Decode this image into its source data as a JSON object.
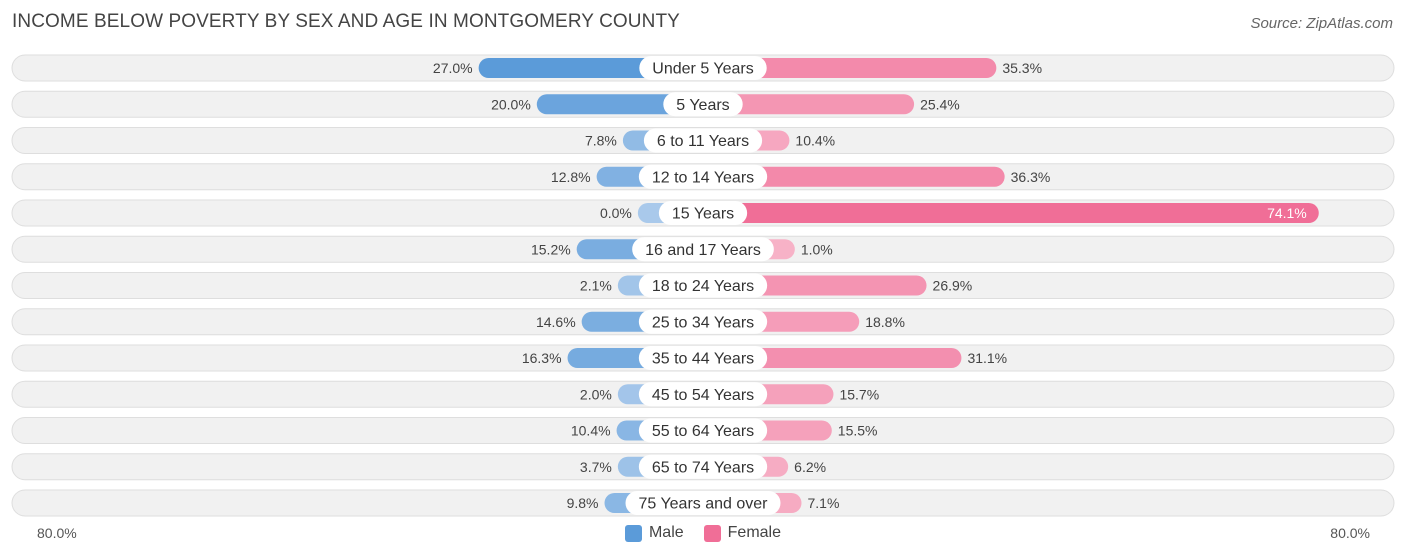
{
  "title": "INCOME BELOW POVERTY BY SEX AND AGE IN MONTGOMERY COUNTY",
  "source": "Source: ZipAtlas.com",
  "colors": {
    "male": "#5b9bd9",
    "male_light": "#a9c9eb",
    "female": "#f06e97",
    "female_light": "#f7b3c8",
    "row_bg": "#f1f1f1",
    "row_border": "#dedede"
  },
  "legend": {
    "male_label": "Male",
    "female_label": "Female"
  },
  "axis": {
    "left_label": "80.0%",
    "right_label": "80.0%"
  },
  "chart_data": {
    "type": "bar",
    "orientation": "horizontal-diverging",
    "title": "INCOME BELOW POVERTY BY SEX AND AGE IN MONTGOMERY COUNTY",
    "categories": [
      "Under 5 Years",
      "5 Years",
      "6 to 11 Years",
      "12 to 14 Years",
      "15 Years",
      "16 and 17 Years",
      "18 to 24 Years",
      "25 to 34 Years",
      "35 to 44 Years",
      "45 to 54 Years",
      "55 to 64 Years",
      "65 to 74 Years",
      "75 Years and over"
    ],
    "series": [
      {
        "name": "Male",
        "values": [
          27.0,
          20.0,
          7.8,
          12.8,
          0.0,
          15.2,
          2.1,
          14.6,
          16.3,
          2.0,
          10.4,
          3.7,
          9.8
        ]
      },
      {
        "name": "Female",
        "values": [
          35.3,
          25.4,
          10.4,
          36.3,
          74.1,
          1.0,
          26.9,
          18.8,
          31.1,
          15.7,
          15.5,
          6.2,
          7.1
        ]
      }
    ],
    "value_labels": {
      "male": [
        "27.0%",
        "20.0%",
        "7.8%",
        "12.8%",
        "0.0%",
        "15.2%",
        "2.1%",
        "14.6%",
        "16.3%",
        "2.0%",
        "10.4%",
        "3.7%",
        "9.8%"
      ],
      "female": [
        "35.3%",
        "25.4%",
        "10.4%",
        "36.3%",
        "74.1%",
        "1.0%",
        "26.9%",
        "18.8%",
        "31.1%",
        "15.7%",
        "15.5%",
        "6.2%",
        "7.1%"
      ]
    },
    "xlim": [
      -80,
      80
    ],
    "legend_position": "bottom-center"
  }
}
